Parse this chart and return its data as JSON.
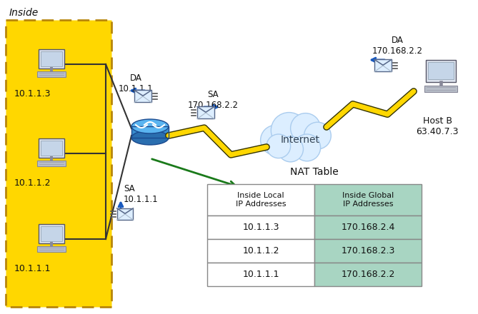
{
  "bg_color": "#ffffff",
  "inside_box_color": "#FFD700",
  "inside_box_border": "#B8860B",
  "inside_label": "Inside",
  "nat_table_title": "NAT Table",
  "nat_table_header_left": "Inside Local\nIP Addresses",
  "nat_table_header_right": "Inside Global\nIP Addresses",
  "nat_table_rows": [
    [
      "10.1.1.3",
      "170.168.2.4"
    ],
    [
      "10.1.1.2",
      "170.168.2.3"
    ],
    [
      "10.1.1.1",
      "170.168.2.2"
    ]
  ],
  "nat_table_right_col_color": "#a8d5c2",
  "computer_ips": [
    "10.1.1.3",
    "10.1.1.2",
    "10.1.1.1"
  ],
  "internet_label": "Internet",
  "host_b_label": "Host B\n63.40.7.3",
  "da_left_label": "DA\n10.1.1.1",
  "sa_right_label": "SA\n170.168.2.2",
  "da_right_label": "DA\n170.168.2.2",
  "sa_bottom_label": "SA\n10.1.1.1",
  "router_color_top": "#5ab4f0",
  "router_color_mid": "#3a8ecf",
  "router_color_bot": "#2a6eaf",
  "arrow_color_blue": "#1a5abf",
  "arrow_color_green": "#1a7a1a",
  "lightning_color": "#FFD700",
  "cloud_color": "#dceeff",
  "cloud_border": "#aaccee"
}
